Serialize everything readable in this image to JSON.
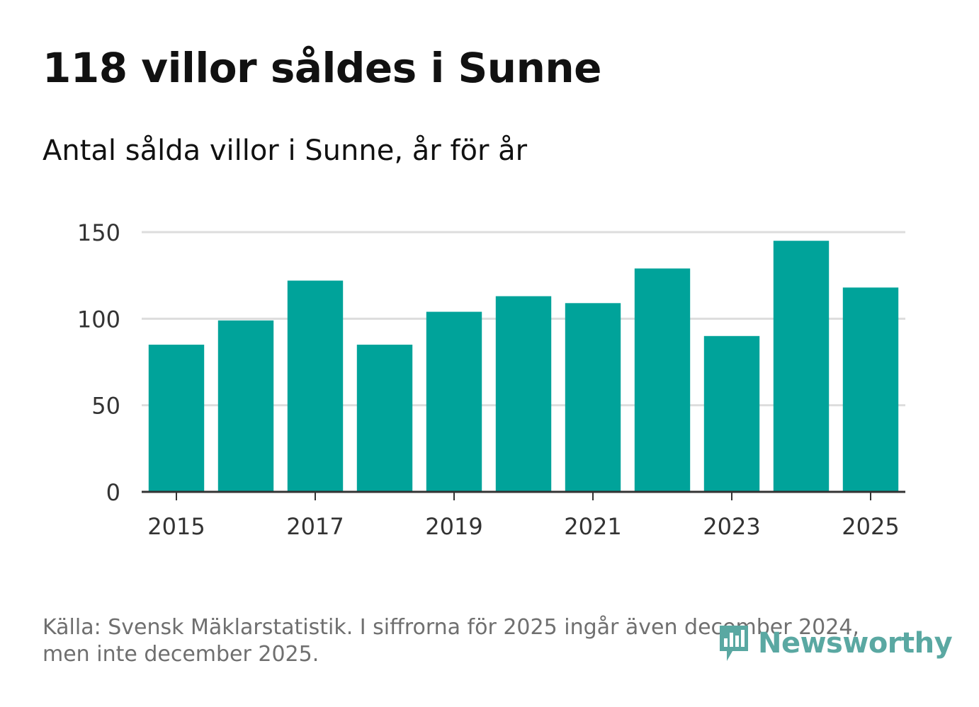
{
  "title": "118 villor såldes i Sunne",
  "subtitle": "Antal sålda villor i Sunne, år för år",
  "footer": {
    "line1": "Källa: Svensk Mäklarstatistik. I siffrorna för 2025 ingår även december 2024,",
    "line2": "men inte december 2025."
  },
  "logo": {
    "text": "Newsworthy",
    "icon": "bar-chart-speech-bubble-icon",
    "color": "#5aa8a2"
  },
  "colors": {
    "bar": "#00a39a",
    "grid": "#dddddd",
    "axis": "#333333",
    "tick_text": "#333333"
  },
  "chart_data": {
    "type": "bar",
    "title": "118 villor såldes i Sunne",
    "subtitle": "Antal sålda villor i Sunne, år för år",
    "xlabel": "",
    "ylabel": "",
    "categories": [
      "2015",
      "2016",
      "2017",
      "2018",
      "2019",
      "2020",
      "2021",
      "2022",
      "2023",
      "2024",
      "2025"
    ],
    "values": [
      85,
      99,
      122,
      85,
      104,
      113,
      109,
      129,
      90,
      145,
      118
    ],
    "x_tick_labels": [
      "2015",
      "2017",
      "2019",
      "2021",
      "2023",
      "2025"
    ],
    "ylim": [
      0,
      150
    ],
    "y_ticks": [
      0,
      50,
      100,
      150
    ],
    "grid": true,
    "legend": "none"
  }
}
